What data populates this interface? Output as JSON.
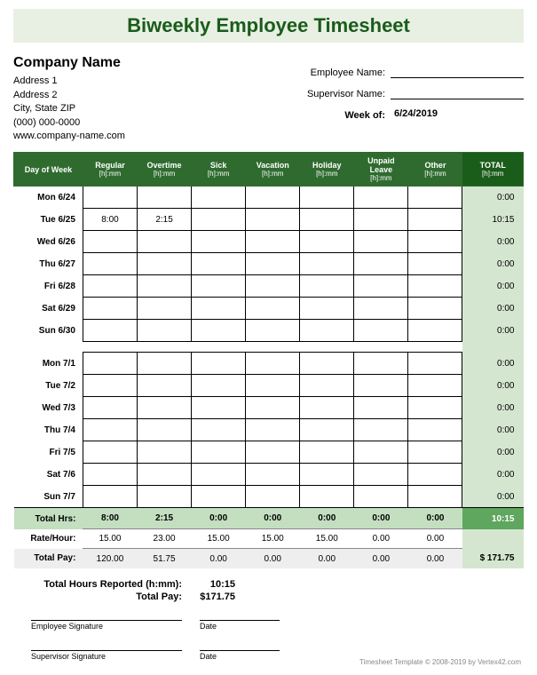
{
  "title": "Biweekly Employee Timesheet",
  "company": {
    "name": "Company Name",
    "address1": "Address 1",
    "address2": "Address 2",
    "citystate": "City, State  ZIP",
    "phone": "(000) 000-0000",
    "website": "www.company-name.com"
  },
  "meta": {
    "employee_label": "Employee Name:",
    "employee_value": "",
    "supervisor_label": "Supervisor Name:",
    "supervisor_value": "",
    "weekof_label": "Week of:",
    "weekof_value": "6/24/2019"
  },
  "columns": [
    {
      "label": "Day of Week",
      "sub": ""
    },
    {
      "label": "Regular",
      "sub": "[h]:mm"
    },
    {
      "label": "Overtime",
      "sub": "[h]:mm"
    },
    {
      "label": "Sick",
      "sub": "[h]:mm"
    },
    {
      "label": "Vacation",
      "sub": "[h]:mm"
    },
    {
      "label": "Holiday",
      "sub": "[h]:mm"
    },
    {
      "label": "Unpaid Leave",
      "sub": "[h]:mm"
    },
    {
      "label": "Other",
      "sub": "[h]:mm"
    },
    {
      "label": "TOTAL",
      "sub": "[h]:mm"
    }
  ],
  "week1": [
    {
      "day": "Mon 6/24",
      "reg": "",
      "ot": "",
      "sick": "",
      "vac": "",
      "hol": "",
      "unp": "",
      "oth": "",
      "tot": "0:00"
    },
    {
      "day": "Tue 6/25",
      "reg": "8:00",
      "ot": "2:15",
      "sick": "",
      "vac": "",
      "hol": "",
      "unp": "",
      "oth": "",
      "tot": "10:15"
    },
    {
      "day": "Wed 6/26",
      "reg": "",
      "ot": "",
      "sick": "",
      "vac": "",
      "hol": "",
      "unp": "",
      "oth": "",
      "tot": "0:00"
    },
    {
      "day": "Thu 6/27",
      "reg": "",
      "ot": "",
      "sick": "",
      "vac": "",
      "hol": "",
      "unp": "",
      "oth": "",
      "tot": "0:00"
    },
    {
      "day": "Fri 6/28",
      "reg": "",
      "ot": "",
      "sick": "",
      "vac": "",
      "hol": "",
      "unp": "",
      "oth": "",
      "tot": "0:00"
    },
    {
      "day": "Sat 6/29",
      "reg": "",
      "ot": "",
      "sick": "",
      "vac": "",
      "hol": "",
      "unp": "",
      "oth": "",
      "tot": "0:00"
    },
    {
      "day": "Sun 6/30",
      "reg": "",
      "ot": "",
      "sick": "",
      "vac": "",
      "hol": "",
      "unp": "",
      "oth": "",
      "tot": "0:00"
    }
  ],
  "week2": [
    {
      "day": "Mon 7/1",
      "reg": "",
      "ot": "",
      "sick": "",
      "vac": "",
      "hol": "",
      "unp": "",
      "oth": "",
      "tot": "0:00"
    },
    {
      "day": "Tue 7/2",
      "reg": "",
      "ot": "",
      "sick": "",
      "vac": "",
      "hol": "",
      "unp": "",
      "oth": "",
      "tot": "0:00"
    },
    {
      "day": "Wed 7/3",
      "reg": "",
      "ot": "",
      "sick": "",
      "vac": "",
      "hol": "",
      "unp": "",
      "oth": "",
      "tot": "0:00"
    },
    {
      "day": "Thu 7/4",
      "reg": "",
      "ot": "",
      "sick": "",
      "vac": "",
      "hol": "",
      "unp": "",
      "oth": "",
      "tot": "0:00"
    },
    {
      "day": "Fri 7/5",
      "reg": "",
      "ot": "",
      "sick": "",
      "vac": "",
      "hol": "",
      "unp": "",
      "oth": "",
      "tot": "0:00"
    },
    {
      "day": "Sat 7/6",
      "reg": "",
      "ot": "",
      "sick": "",
      "vac": "",
      "hol": "",
      "unp": "",
      "oth": "",
      "tot": "0:00"
    },
    {
      "day": "Sun 7/7",
      "reg": "",
      "ot": "",
      "sick": "",
      "vac": "",
      "hol": "",
      "unp": "",
      "oth": "",
      "tot": "0:00"
    }
  ],
  "totals": {
    "label": "Total Hrs:",
    "reg": "8:00",
    "ot": "2:15",
    "sick": "0:00",
    "vac": "0:00",
    "hol": "0:00",
    "unp": "0:00",
    "oth": "0:00",
    "tot": "10:15"
  },
  "rate": {
    "label": "Rate/Hour:",
    "reg": "15.00",
    "ot": "23.00",
    "sick": "15.00",
    "vac": "15.00",
    "hol": "15.00",
    "unp": "0.00",
    "oth": "0.00",
    "tot": ""
  },
  "pay": {
    "label": "Total Pay:",
    "reg": "120.00",
    "ot": "51.75",
    "sick": "0.00",
    "vac": "0.00",
    "hol": "0.00",
    "unp": "0.00",
    "oth": "0.00",
    "tot": "$   171.75"
  },
  "summary": {
    "hours_label": "Total Hours Reported (h:mm):",
    "hours_value": "10:15",
    "pay_label": "Total Pay:",
    "pay_value": "$171.75"
  },
  "signatures": {
    "employee": "Employee Signature",
    "supervisor": "Supervisor Signature",
    "date": "Date"
  },
  "footer": "Timesheet Template © 2008-2019 by Vertex42.com",
  "colors": {
    "header_bg": "#2f6b2f",
    "header_dark": "#1a5c1a",
    "light_green": "#d4e6d0",
    "mid_green": "#c3dfc0",
    "accent_green": "#5fa65f",
    "title_bg": "#e8f0e4",
    "gray_bg": "#eeeeee"
  }
}
